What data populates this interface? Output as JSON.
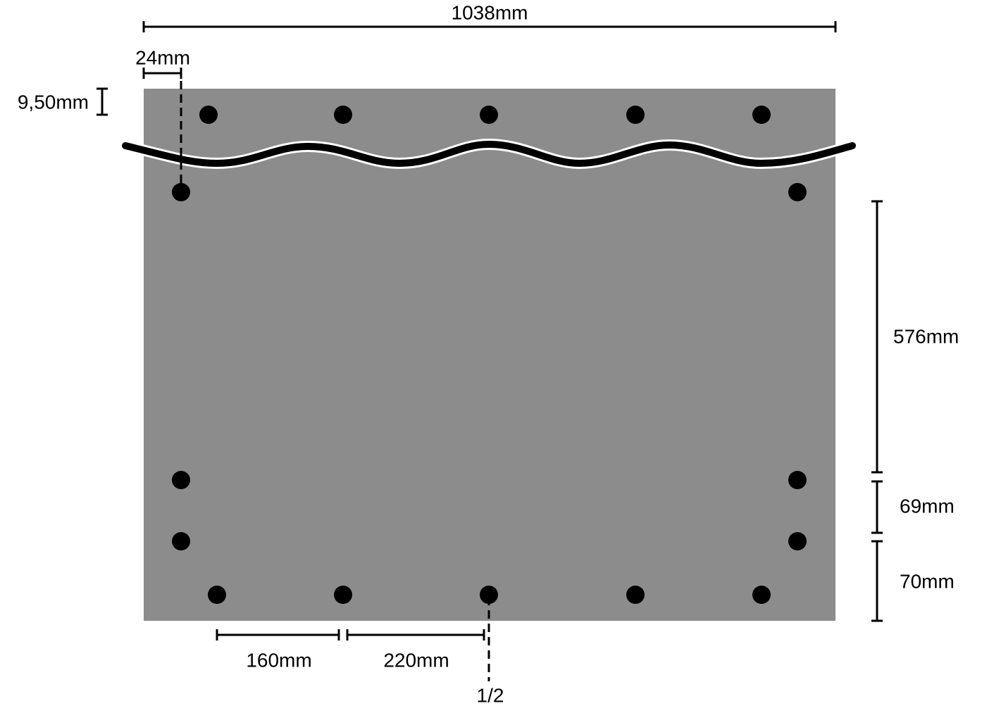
{
  "dimensions": {
    "total_width": "1038mm",
    "edge_offset": "24mm",
    "top_offset": "9,50mm",
    "side_upper": "576mm",
    "side_middle": "69mm",
    "side_lower": "70mm",
    "bottom_first": "160mm",
    "bottom_second": "220mm",
    "center_mark": "1/2"
  }
}
